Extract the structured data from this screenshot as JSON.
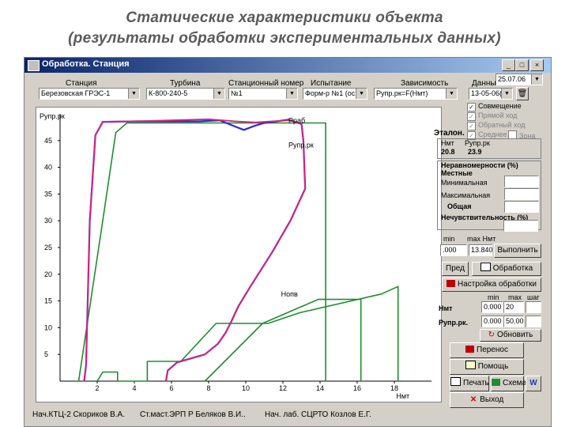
{
  "slide": {
    "title_line1": "Статические характеристики объекта",
    "title_line2": "(результаты обработки экспериментальных данных)"
  },
  "window": {
    "title": "Обработка. Станция",
    "date_value": "25.07.06"
  },
  "header": {
    "station_label": "Станция",
    "turbine_label": "Турбина",
    "station_number_label": "Станционный номер",
    "test_label": "Испытание",
    "dependency_label": "Зависимость",
    "data_label": "Данные"
  },
  "selectors": {
    "station": "Березовская ГРЭС-1",
    "turbine": "К-800-240-5",
    "station_number": "№1",
    "test": "Форм-р №1 (ос",
    "dependency": "Рупр.рк=F(Нмт)",
    "data": "13-05-06(2"
  },
  "checkboxes": {
    "combined": "Совмещение",
    "forward": "Прямой ход",
    "reverse": "Обратный ход",
    "average": "Среднее",
    "zone": "Зона"
  },
  "etalon": {
    "label": "Эталон.",
    "col1": "Нмт",
    "col2": "Рупр.рк",
    "val1": "20.8",
    "val2": "23.9"
  },
  "nonuniformity": {
    "title": "Неравномерности (%)",
    "local": "Местные",
    "min": "Минимальная",
    "max": "Максимальная",
    "total": "Общая",
    "insensitivity": "Нечувствительность (%)"
  },
  "minmax": {
    "min_label": "min",
    "max_label": "max Нмт",
    "min_value": ".000",
    "max_value": "13.840",
    "run_button": "Выполнить"
  },
  "actions": {
    "pred_button": "Пред",
    "process_button": "Обработка",
    "settings_button": "Настройка обработки",
    "refresh_button": "Обновить",
    "transfer_button": "Перенос",
    "help_button": "Помощь",
    "print_button": "Печать",
    "chart_button": "Схема",
    "exit_button": "Выход"
  },
  "scale": {
    "min_label": "min",
    "max_label": "max",
    "step_label": "шаг",
    "row1_label": "Нмт",
    "row1_min": "0.000",
    "row1_max": "20",
    "row2_label": "Рупр.рк.",
    "row2_min": "0.000",
    "row2_max": "50.00"
  },
  "status": {
    "item1": "Нач.КТЦ-2  Скориков В.А.",
    "item2": "Ст.маст.ЭРП Р Беляков В.И..",
    "item3": "Нач. лаб. СЦРТО Козлов Е.Г."
  },
  "colors": {
    "etalon_line": "#1c8f2c",
    "forward_series": "#e0207a",
    "reverse_series": "#2a2ad0",
    "window_face": "#d4d0c8",
    "titlebar": "#0a246a"
  },
  "chart_data": {
    "type": "line",
    "ylabel": "Рупр.рк",
    "xlabel": "Нмт",
    "xlim": [
      0,
      20
    ],
    "ylim": [
      0,
      50
    ],
    "x_ticks": [
      "2",
      "4",
      "6",
      "8",
      "10",
      "12",
      "14",
      "16",
      "18"
    ],
    "y_ticks": [
      "5",
      "10",
      "15",
      "20",
      "25",
      "30",
      "35",
      "40",
      "45"
    ],
    "annotations": [
      {
        "text": "Рраб",
        "x": 12.3,
        "y": 48.3
      },
      {
        "text": "Рупр.рк",
        "x": 12.3,
        "y": 43.7
      },
      {
        "text": "Нопв",
        "x": 11.9,
        "y": 15.8
      }
    ],
    "series": [
      {
        "points": [
          [
            1.0,
            0
          ],
          [
            2.3,
            30
          ],
          [
            3.0,
            46.5
          ],
          [
            3.6,
            48.3
          ],
          [
            12.0,
            48.3
          ],
          [
            14.3,
            48.3
          ],
          [
            14.3,
            0
          ]
        ]
      },
      {
        "points": [
          [
            7.8,
            0
          ],
          [
            10.9,
            10.8
          ],
          [
            13.9,
            15.3
          ],
          [
            16.2,
            15.3
          ],
          [
            16.2,
            0
          ]
        ]
      },
      {
        "points": [
          [
            2.0,
            0
          ],
          [
            2.3,
            1.7
          ],
          [
            3.1,
            1.7
          ],
          [
            3.1,
            0
          ],
          [
            4.7,
            0
          ],
          [
            4.7,
            3.7
          ],
          [
            6.5,
            3.7
          ],
          [
            8.4,
            10.8
          ],
          [
            11.2,
            10.8
          ],
          [
            12.9,
            12.8
          ],
          [
            17.3,
            16.3
          ],
          [
            18.2,
            17.7
          ],
          [
            18.2,
            0
          ]
        ]
      },
      {
        "points": [
          [
            1.3,
            0
          ],
          [
            1.4,
            3
          ],
          [
            1.6,
            30
          ],
          [
            1.9,
            46
          ],
          [
            2.3,
            48.5
          ],
          [
            4.0,
            48.6
          ],
          [
            7.5,
            48.6
          ],
          [
            8.6,
            48.8
          ],
          [
            9.3,
            47.8
          ],
          [
            9.9,
            47.0
          ],
          [
            10.5,
            47.8
          ],
          [
            11.0,
            48.3
          ],
          [
            12.3,
            48.9
          ],
          [
            13.0,
            48.1
          ],
          [
            13.1,
            45
          ],
          [
            13.2,
            36
          ],
          [
            12.4,
            30
          ],
          [
            11.4,
            24
          ],
          [
            10.3,
            18
          ],
          [
            9.6,
            14
          ],
          [
            9.2,
            11
          ],
          [
            8.9,
            9
          ],
          [
            8.5,
            7
          ],
          [
            7.8,
            5
          ],
          [
            6.3,
            3.5
          ],
          [
            5.8,
            2
          ],
          [
            5.7,
            0
          ]
        ]
      },
      {
        "points": [
          [
            1.3,
            0
          ],
          [
            1.4,
            3
          ],
          [
            1.6,
            30
          ],
          [
            1.9,
            46
          ],
          [
            2.3,
            48.5
          ],
          [
            5.0,
            48.7
          ],
          [
            8.0,
            49.0
          ],
          [
            9.5,
            48.6
          ],
          [
            10.5,
            48.4
          ],
          [
            12.3,
            48.8
          ],
          [
            13.0,
            48.2
          ],
          [
            13.1,
            45
          ],
          [
            13.2,
            36
          ],
          [
            12.4,
            30
          ],
          [
            11.4,
            24
          ],
          [
            10.3,
            18
          ],
          [
            9.6,
            14
          ],
          [
            9.2,
            11
          ],
          [
            8.9,
            9
          ],
          [
            8.5,
            7
          ],
          [
            7.8,
            5
          ],
          [
            6.3,
            3.5
          ],
          [
            5.8,
            2
          ],
          [
            5.7,
            0
          ]
        ]
      }
    ]
  }
}
